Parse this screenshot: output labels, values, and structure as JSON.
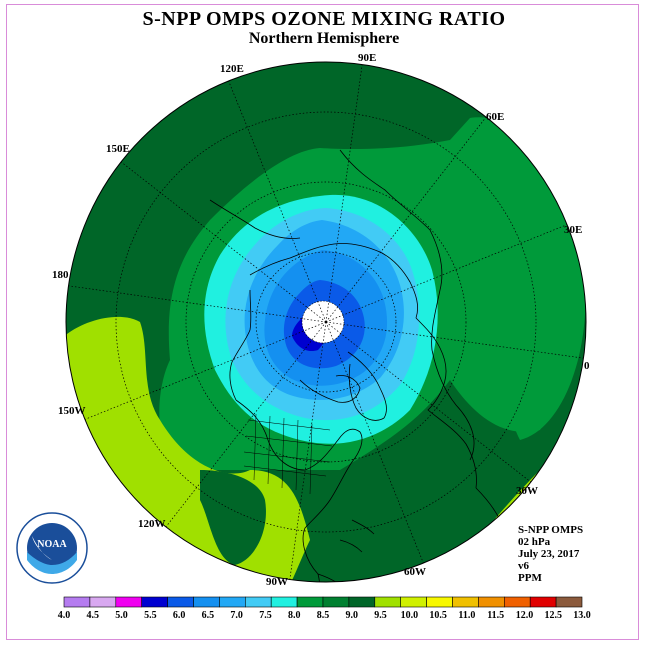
{
  "title": "S-NPP OMPS OZONE MIXING RATIO",
  "subtitle": "Northern Hemisphere",
  "longitude_labels": [
    "90E",
    "60E",
    "30E",
    "0",
    "30W",
    "60W",
    "90W",
    "120W",
    "150W",
    "180",
    "150E",
    "120E"
  ],
  "info": {
    "satellite": "S-NPP OMPS",
    "pressure": "02 hPa",
    "date": "July 23, 2017",
    "version": "v6",
    "units": "PPM"
  },
  "logo": {
    "text": "NOAA",
    "ring_text": "NATIONAL OCEANIC AND ATMOSPHERIC ADMINISTRATION · U.S. DEPARTMENT OF COMMERCE"
  },
  "colorbar": {
    "ticks": [
      "4.0",
      "4.5",
      "5.0",
      "5.5",
      "6.0",
      "6.5",
      "7.0",
      "7.5",
      "8.0",
      "8.5",
      "9.0",
      "9.5",
      "10.0",
      "10.5",
      "11.0",
      "11.5",
      "12.0",
      "12.5",
      "13.0"
    ],
    "colors": [
      "#b57cf0",
      "#d8a8f0",
      "#f000f0",
      "#0000d0",
      "#0a5ae8",
      "#1490f0",
      "#22a8f5",
      "#42cbf5",
      "#20f0e0",
      "#009a3a",
      "#008030",
      "#006628",
      "#a0e000",
      "#d0f000",
      "#f8f800",
      "#f0c000",
      "#f09000",
      "#f06000",
      "#e00000",
      "#8b5a3c"
    ]
  },
  "ozone_levels": [
    {
      "level": "9.0",
      "color": "#006628"
    },
    {
      "level": "8.5",
      "color": "#009a3a"
    },
    {
      "level": "8.0",
      "color": "#20f0e0"
    },
    {
      "level": "7.5",
      "color": "#42cbf5"
    },
    {
      "level": "7.0",
      "color": "#22a8f5"
    },
    {
      "level": "6.5",
      "color": "#1490f0"
    },
    {
      "level": "6.0",
      "color": "#0a5ae8"
    },
    {
      "level": "5.5",
      "color": "#0000d0"
    },
    {
      "level": "9.5",
      "color": "#a0e000"
    }
  ]
}
